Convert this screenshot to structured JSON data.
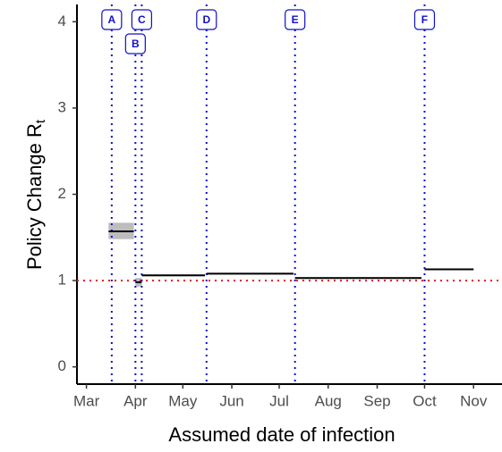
{
  "chart_data": {
    "type": "step-segments",
    "x_label": "Assumed date of infection",
    "y_label": "Policy Change R",
    "y_label_subscript": "t",
    "xlim": [
      54,
      323
    ],
    "xticks": [
      {
        "value": 60,
        "label": "Mar"
      },
      {
        "value": 91,
        "label": "Apr"
      },
      {
        "value": 121,
        "label": "May"
      },
      {
        "value": 152,
        "label": "Jun"
      },
      {
        "value": 182,
        "label": "Jul"
      },
      {
        "value": 213,
        "label": "Aug"
      },
      {
        "value": 244,
        "label": "Sep"
      },
      {
        "value": 274,
        "label": "Oct"
      },
      {
        "value": 305,
        "label": "Nov"
      }
    ],
    "ylim": [
      -0.2,
      4.2
    ],
    "yticks": [
      0,
      1,
      2,
      3,
      4
    ],
    "segments": {
      "start": [
        74,
        91,
        95,
        136,
        192,
        274
      ],
      "end": [
        90,
        95,
        135,
        191,
        272,
        305
      ],
      "values": [
        1.57,
        0.98,
        1.06,
        1.08,
        1.03,
        1.13
      ],
      "lower": [
        1.48,
        0.93,
        1.05,
        1.07,
        1.02,
        1.12
      ],
      "upper": [
        1.67,
        1.03,
        1.07,
        1.09,
        1.04,
        1.14
      ],
      "color": "#000000",
      "band_color": "#bdbdbd"
    },
    "events": {
      "labels": [
        "A",
        "B",
        "C",
        "D",
        "E",
        "F"
      ],
      "x": [
        76,
        91,
        95,
        136,
        192,
        274
      ],
      "color": "#1010c8"
    },
    "reference_line": {
      "value": 1,
      "color": "#e31a1c"
    }
  }
}
